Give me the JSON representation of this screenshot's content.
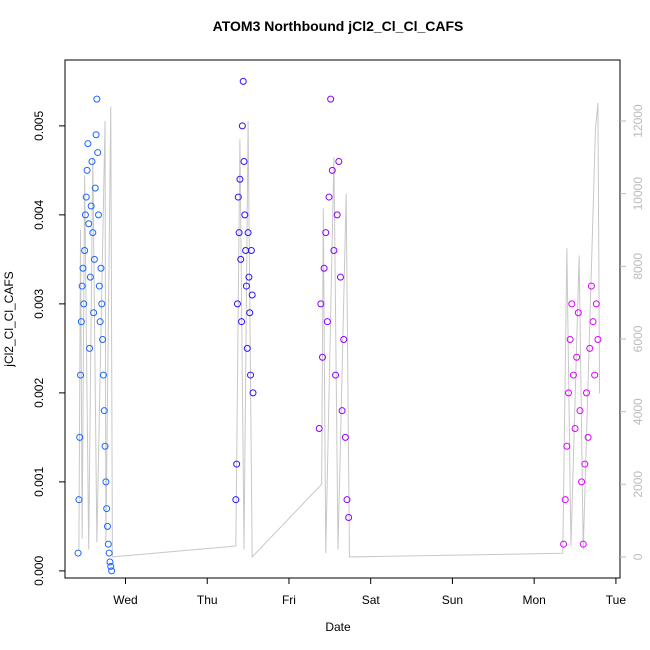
{
  "chart_data": {
    "type": "scatter",
    "title": "ATOM3 Northbound jCl2_Cl_Cl_CAFS",
    "x_label": "Date",
    "y_label": "jCl2_Cl_Cl_CAFS",
    "xlim": [
      0.26,
      7.05
    ],
    "xticks": [
      {
        "value": 1,
        "label": "Wed"
      },
      {
        "value": 2,
        "label": "Thu"
      },
      {
        "value": 3,
        "label": "Fri"
      },
      {
        "value": 4,
        "label": "Sat"
      },
      {
        "value": 5,
        "label": "Sun"
      },
      {
        "value": 6,
        "label": "Mon"
      },
      {
        "value": 7,
        "label": "Tue"
      }
    ],
    "ylim": [
      -8e-05,
      0.00574
    ],
    "yticks": [
      {
        "value": 0,
        "label": "0.000"
      },
      {
        "value": 0.001,
        "label": "0.001"
      },
      {
        "value": 0.002,
        "label": "0.002"
      },
      {
        "value": 0.003,
        "label": "0.003"
      },
      {
        "value": 0.004,
        "label": "0.004"
      },
      {
        "value": 0.005,
        "label": "0.005"
      }
    ],
    "y2lim": [
      -580,
      13680
    ],
    "y2ticks": [
      0,
      2000,
      4000,
      6000,
      8000,
      10000,
      12000
    ],
    "series": [
      {
        "type": "line",
        "axis": "y2",
        "color": "#c8c8c8",
        "x": [
          0.43,
          0.45,
          0.47,
          0.5,
          0.55,
          0.6,
          0.65,
          0.75,
          0.76,
          0.82,
          0.84,
          2.35,
          2.4,
          2.45,
          2.5,
          2.55,
          3.4,
          3.42,
          3.45,
          3.55,
          3.6,
          3.7,
          3.74,
          6.35,
          6.4,
          6.45,
          6.55,
          6.6,
          6.75,
          6.78,
          6.8
        ],
        "values": [
          200,
          9000,
          500,
          10500,
          200,
          11000,
          400,
          12000,
          400,
          12400,
          0,
          300,
          11500,
          200,
          12000,
          0,
          2000,
          9600,
          100,
          11000,
          200,
          10000,
          0,
          100,
          8500,
          300,
          8300,
          200,
          11800,
          12500,
          4500
        ]
      },
      {
        "type": "scatter",
        "color": "#1a66ff",
        "x": [
          0.42,
          0.43,
          0.44,
          0.45,
          0.46,
          0.47,
          0.48,
          0.49,
          0.5,
          0.51,
          0.52,
          0.53,
          0.54,
          0.55,
          0.56,
          0.57,
          0.58,
          0.59,
          0.6,
          0.61,
          0.62,
          0.63,
          0.64,
          0.65,
          0.66,
          0.67,
          0.68,
          0.69,
          0.7,
          0.71,
          0.72,
          0.73,
          0.74,
          0.75,
          0.76,
          0.77,
          0.78,
          0.79,
          0.8,
          0.81,
          0.82,
          0.83
        ],
        "values": [
          0.0002,
          0.0008,
          0.0015,
          0.0022,
          0.0028,
          0.0032,
          0.0034,
          0.003,
          0.0036,
          0.004,
          0.0042,
          0.0045,
          0.0048,
          0.0039,
          0.0025,
          0.0033,
          0.0041,
          0.0046,
          0.0038,
          0.0029,
          0.0035,
          0.0043,
          0.0049,
          0.0053,
          0.0047,
          0.004,
          0.0032,
          0.0028,
          0.0034,
          0.003,
          0.0026,
          0.0022,
          0.0018,
          0.0014,
          0.001,
          0.0007,
          0.0005,
          0.0003,
          0.0002,
          0.0001,
          5e-05,
          0
        ]
      },
      {
        "type": "scatter",
        "color": "#2a14ff",
        "x": [
          2.35,
          2.36,
          2.37,
          2.38,
          2.39,
          2.4,
          2.41,
          2.42,
          2.43,
          2.44,
          2.45,
          2.46,
          2.47,
          2.48,
          2.49,
          2.5,
          2.51,
          2.52,
          2.53,
          2.54,
          2.55,
          2.56
        ],
        "values": [
          0.0008,
          0.0012,
          0.003,
          0.0042,
          0.0038,
          0.0044,
          0.0035,
          0.0028,
          0.005,
          0.0055,
          0.0046,
          0.004,
          0.0036,
          0.0032,
          0.0025,
          0.0038,
          0.0033,
          0.0029,
          0.0022,
          0.0036,
          0.0031,
          0.002
        ]
      },
      {
        "type": "scatter",
        "color": "#8a00ff",
        "x": [
          3.37,
          3.39,
          3.41,
          3.43,
          3.45,
          3.47,
          3.49,
          3.51,
          3.53,
          3.55,
          3.57,
          3.59,
          3.61,
          3.63,
          3.65,
          3.67,
          3.69,
          3.71,
          3.73
        ],
        "values": [
          0.0016,
          0.003,
          0.0024,
          0.0034,
          0.0038,
          0.0028,
          0.0042,
          0.0053,
          0.0045,
          0.0036,
          0.0022,
          0.004,
          0.0046,
          0.0033,
          0.0018,
          0.0026,
          0.0015,
          0.0008,
          0.0006
        ]
      },
      {
        "type": "scatter",
        "color": "#dd00ff",
        "x": [
          6.36,
          6.38,
          6.4,
          6.42,
          6.44,
          6.46,
          6.48,
          6.5,
          6.52,
          6.54,
          6.56,
          6.58,
          6.6,
          6.62,
          6.64,
          6.66,
          6.68,
          6.7,
          6.72,
          6.74,
          6.76,
          6.78
        ],
        "values": [
          0.0003,
          0.0008,
          0.0014,
          0.002,
          0.0026,
          0.003,
          0.0022,
          0.0016,
          0.0024,
          0.0029,
          0.0018,
          0.001,
          0.0003,
          0.0012,
          0.002,
          0.0015,
          0.0025,
          0.0032,
          0.0028,
          0.0022,
          0.003,
          0.0026
        ]
      }
    ]
  }
}
